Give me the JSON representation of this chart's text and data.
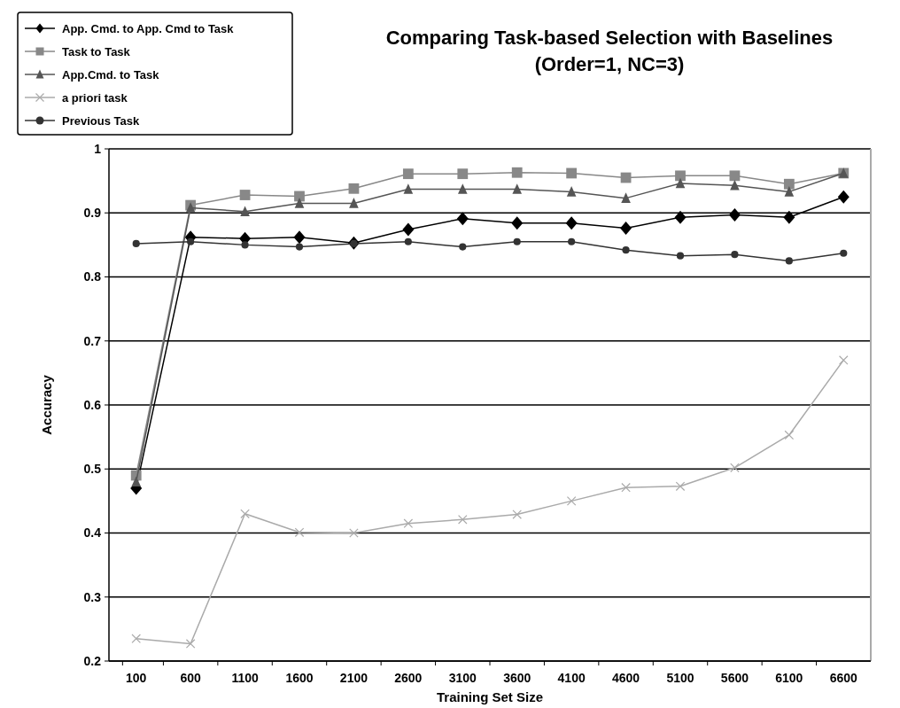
{
  "chart_data": {
    "type": "line",
    "title": "Comparing Task-based Selection with Baselines",
    "subtitle": "(Order=1, NC=3)",
    "xlabel": "Training Set Size",
    "ylabel": "Accuracy",
    "categories": [
      "100",
      "600",
      "1100",
      "1600",
      "2100",
      "2600",
      "3100",
      "3600",
      "4100",
      "4600",
      "5100",
      "5600",
      "6100",
      "6600"
    ],
    "ylim": [
      0.2,
      1
    ],
    "yticks": [
      0.2,
      0.3,
      0.4,
      0.5,
      0.6,
      0.7,
      0.8,
      0.9,
      1
    ],
    "grid": "y",
    "legend": "top left",
    "line_style": "solid",
    "series": [
      {
        "name": "App. Cmd. to App. Cmd to Task",
        "color": "#000000",
        "marker": "diamond",
        "values": [
          0.47,
          0.862,
          0.86,
          0.862,
          0.853,
          0.874,
          0.891,
          0.884,
          0.884,
          0.876,
          0.893,
          0.897,
          0.893,
          0.925
        ]
      },
      {
        "name": "Task to Task",
        "color": "#888888",
        "marker": "square",
        "values": [
          0.49,
          0.912,
          0.928,
          0.926,
          0.938,
          0.961,
          0.961,
          0.963,
          0.962,
          0.955,
          0.958,
          0.958,
          0.945,
          0.962
        ]
      },
      {
        "name": "App.Cmd. to Task",
        "color": "#555555",
        "marker": "triangle",
        "values": [
          0.48,
          0.908,
          0.902,
          0.915,
          0.915,
          0.937,
          0.937,
          0.937,
          0.933,
          0.923,
          0.946,
          0.943,
          0.933,
          0.962
        ]
      },
      {
        "name": "a priori task",
        "color": "#aaaaaa",
        "marker": "cross",
        "values": [
          0.235,
          0.227,
          0.43,
          0.401,
          0.4,
          0.415,
          0.421,
          0.429,
          0.45,
          0.471,
          0.473,
          0.502,
          0.553,
          0.67
        ]
      },
      {
        "name": "Previous Task",
        "color": "#333333",
        "marker": "circle",
        "values": [
          0.852,
          0.855,
          0.85,
          0.847,
          0.852,
          0.855,
          0.847,
          0.855,
          0.855,
          0.842,
          0.833,
          0.835,
          0.825,
          0.837
        ]
      }
    ]
  }
}
